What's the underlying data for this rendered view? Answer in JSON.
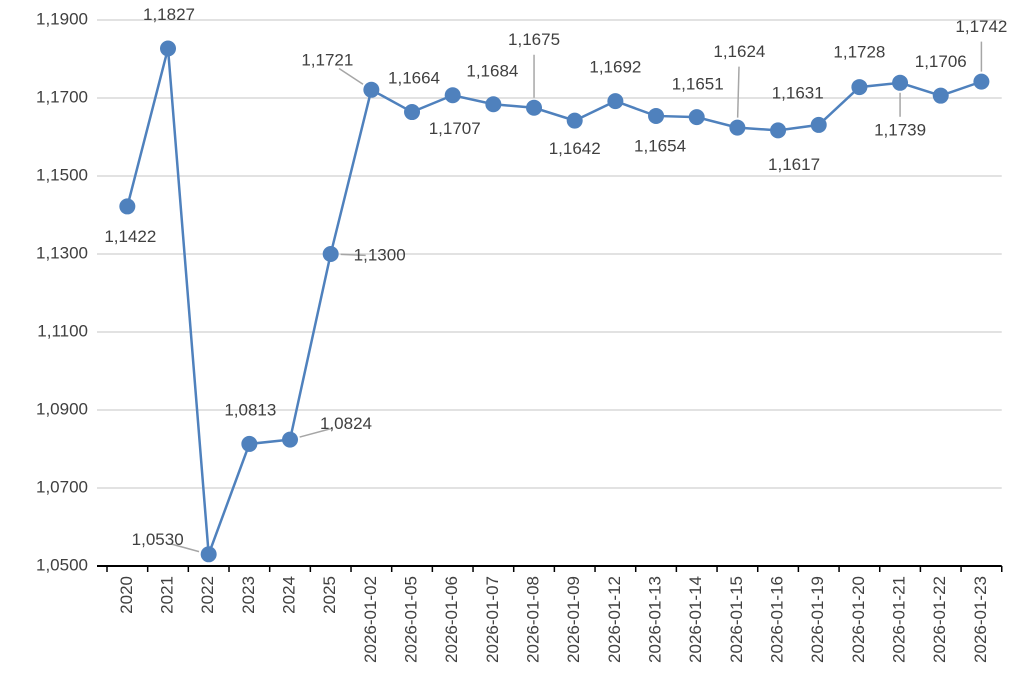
{
  "chart_data": {
    "type": "line",
    "categories": [
      "2020",
      "2021",
      "2022",
      "2023",
      "2024",
      "2025",
      "2026-01-02",
      "2026-01-05",
      "2026-01-06",
      "2026-01-07",
      "2026-01-08",
      "2026-01-09",
      "2026-01-12",
      "2026-01-13",
      "2026-01-14",
      "2026-01-15",
      "2026-01-16",
      "2026-01-19",
      "2026-01-20",
      "2026-01-21",
      "2026-01-22",
      "2026-01-23"
    ],
    "series": [
      {
        "color": "#4f81bd",
        "values": [
          1.1422,
          1.1827,
          1.053,
          1.0813,
          1.0824,
          1.13,
          1.1721,
          1.1664,
          1.1707,
          1.1684,
          1.1675,
          1.1642,
          1.1692,
          1.1654,
          1.1651,
          1.1624,
          1.1617,
          1.1631,
          1.1728,
          1.1739,
          1.1706,
          1.1742
        ],
        "value_labels": [
          "1,1422",
          "1,1827",
          "1,0530",
          "1,0813",
          "1,0824",
          "1,1300",
          "1,1721",
          "1,1664",
          "1,1707",
          "1,1684",
          "1,1675",
          "1,1642",
          "1,1692",
          "1,1654",
          "1,1651",
          "1,1624",
          "1,1617",
          "1,1631",
          "1,1728",
          "1,1739",
          "1,1706",
          "1,1742"
        ]
      }
    ],
    "ylim": [
      1.05,
      1.19
    ],
    "yticks": [
      {
        "value": 1.05,
        "label": "1,0500"
      },
      {
        "value": 1.07,
        "label": "1,0700"
      },
      {
        "value": 1.09,
        "label": "1,0900"
      },
      {
        "value": 1.11,
        "label": "1,1100"
      },
      {
        "value": 1.13,
        "label": "1,1300"
      },
      {
        "value": 1.15,
        "label": "1,1500"
      },
      {
        "value": 1.17,
        "label": "1,1700"
      },
      {
        "value": 1.19,
        "label": "1,1900"
      }
    ],
    "grid": true
  }
}
